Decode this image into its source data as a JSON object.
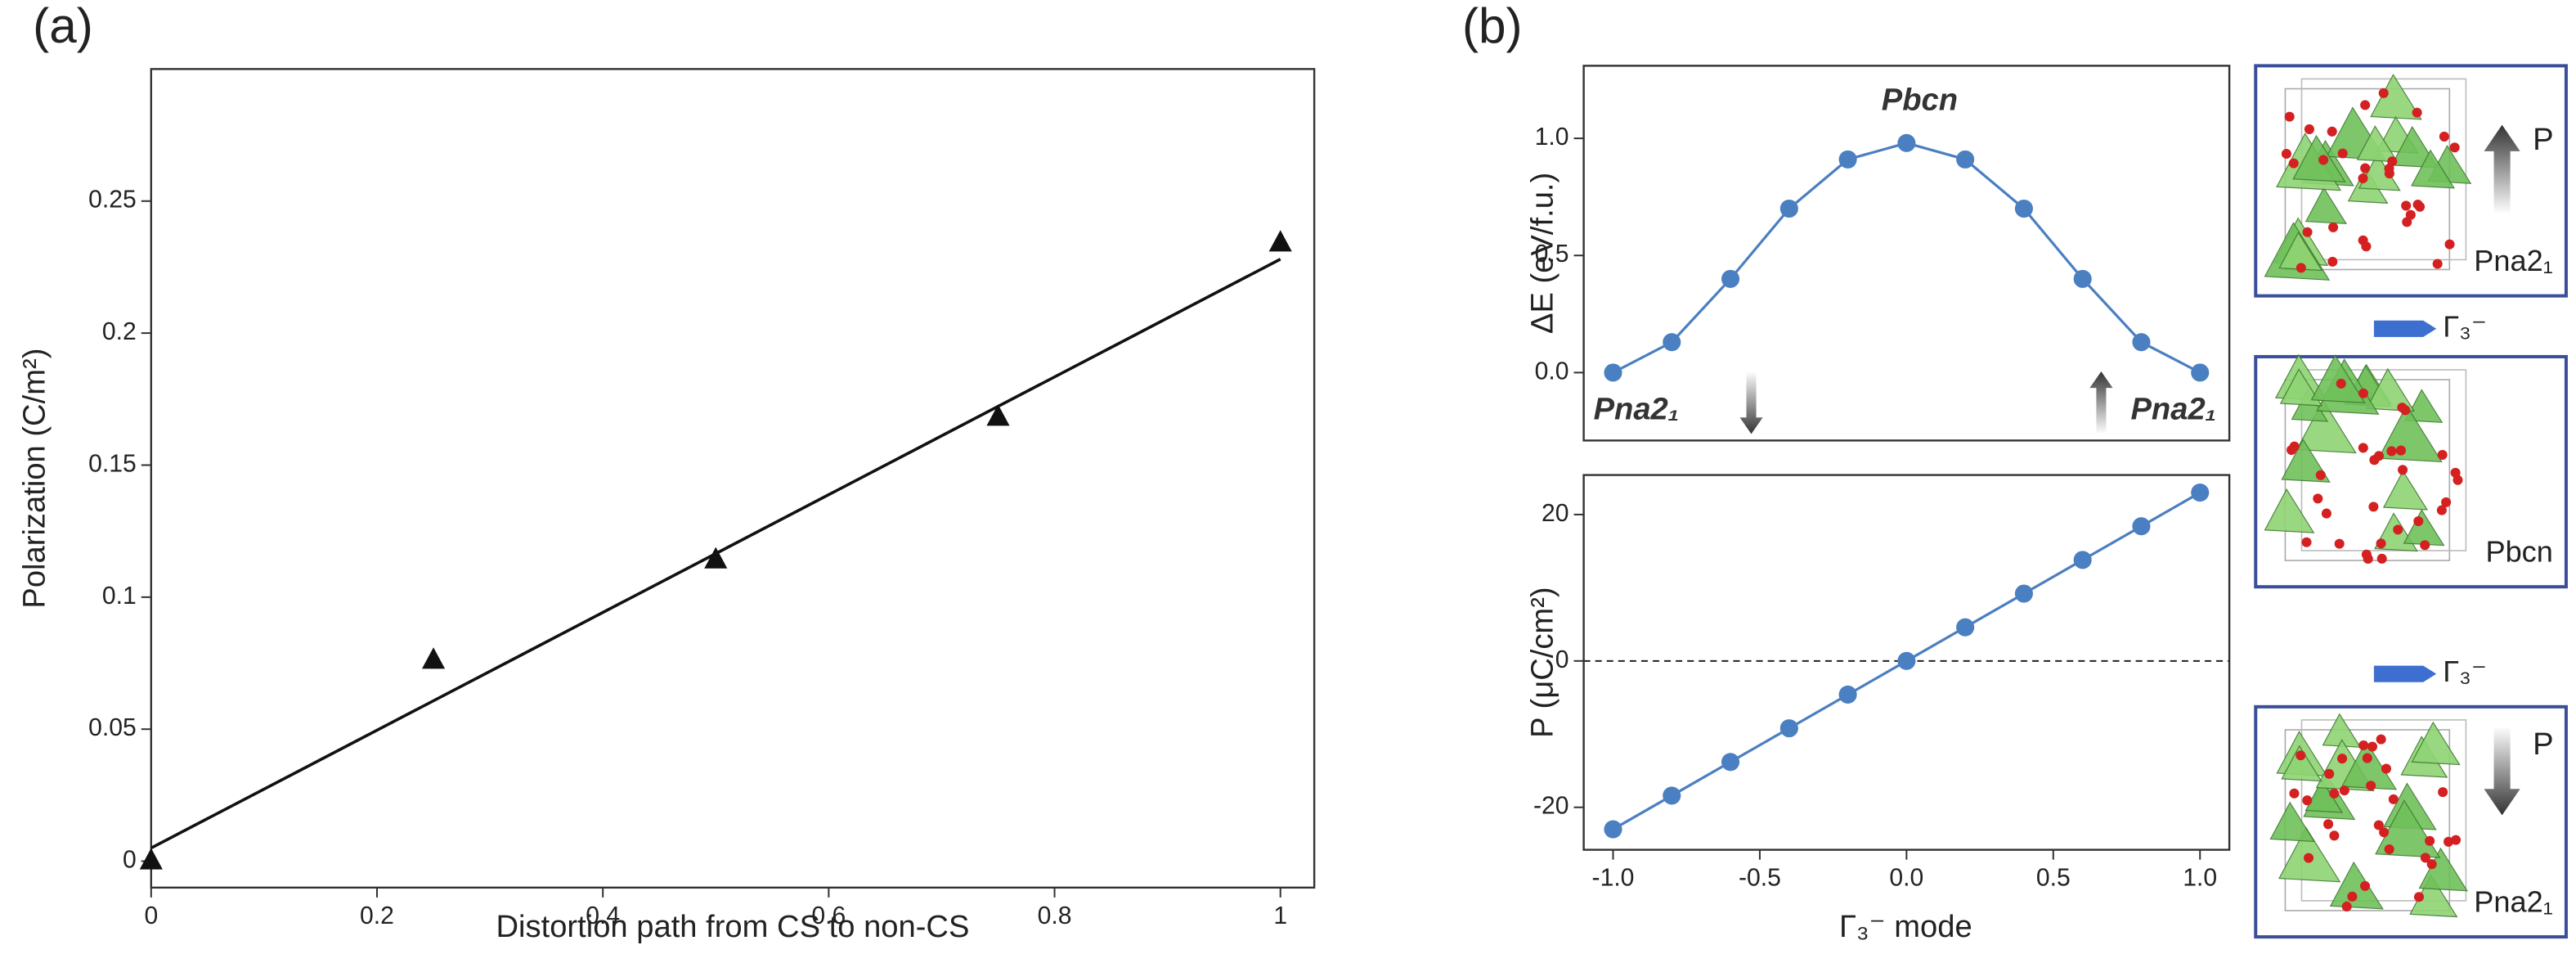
{
  "panel_labels": [
    "(a)",
    "(b)"
  ],
  "chart_data": [
    {
      "type": "scatter",
      "xlabel": "Distortion path from CS to non-CS",
      "ylabel": "Polarization (C/m²)",
      "xlim": [
        0,
        1.03
      ],
      "ylim": [
        -0.01,
        0.3
      ],
      "xticks": [
        0,
        0.2,
        0.4,
        0.6,
        0.8,
        1
      ],
      "yticks": [
        0,
        0.05,
        0.1,
        0.15,
        0.2,
        0.25
      ],
      "series": [
        {
          "color": "#111111",
          "marker": "triangle",
          "x": [
            0,
            0.25,
            0.5,
            0.75,
            1
          ],
          "values": [
            0,
            0.076,
            0.114,
            0.168,
            0.234
          ]
        },
        {
          "color": "#111111",
          "style": "line",
          "x": [
            0,
            1
          ],
          "values": [
            0.005,
            0.228
          ]
        }
      ]
    },
    {
      "type": "line",
      "ylabel": "ΔE (eV/f.u.)",
      "xlim": [
        -1.1,
        1.1
      ],
      "ylim": [
        -0.29,
        1.31
      ],
      "yticks": [
        {
          "value": 0,
          "label": "0.0"
        },
        {
          "value": 0.5,
          "label": "0.5"
        },
        {
          "value": 1,
          "label": "1.0"
        }
      ],
      "x": [
        -1,
        -0.8,
        -0.6,
        -0.4,
        -0.2,
        0,
        0.2,
        0.4,
        0.6,
        0.8,
        1
      ],
      "series": [
        {
          "color": "#4a7fc1",
          "values": [
            0,
            0.13,
            0.4,
            0.7,
            0.91,
            0.98,
            0.91,
            0.7,
            0.4,
            0.13,
            0
          ]
        }
      ],
      "annotations": [
        {
          "text": "Pbcn"
        },
        {
          "text": "Pna2₁",
          "arrow": "down"
        },
        {
          "text": "Pna2₁",
          "arrow": "up"
        }
      ]
    },
    {
      "type": "line",
      "xlabel": "Γ₃⁻ mode",
      "ylabel": "P (μC/cm²)",
      "xlim": [
        -1.1,
        1.1
      ],
      "ylim": [
        -25.8,
        25.4
      ],
      "xticks": [
        {
          "value": -1,
          "label": "-1.0"
        },
        {
          "value": -0.5,
          "label": "-0.5"
        },
        {
          "value": 0,
          "label": "0.0"
        },
        {
          "value": 0.5,
          "label": "0.5"
        },
        {
          "value": 1,
          "label": "1.0"
        }
      ],
      "yticks": [
        -20,
        0,
        20
      ],
      "zero_line": true,
      "x": [
        -1,
        -0.8,
        -0.6,
        -0.4,
        -0.2,
        0,
        0.2,
        0.4,
        0.6,
        0.8,
        1
      ],
      "series": [
        {
          "color": "#4a7fc1",
          "values": [
            -23,
            -18.4,
            -13.8,
            -9.2,
            -4.6,
            0,
            4.6,
            9.2,
            13.8,
            18.4,
            23
          ]
        }
      ]
    }
  ],
  "structures": {
    "panels": [
      {
        "arrow": "P",
        "arrow_direction": "up",
        "label": "Pna2₁"
      },
      {
        "label": "Pbcn"
      },
      {
        "arrow": "P",
        "arrow_direction": "down",
        "label": "Pna2₁"
      }
    ],
    "transitions": [
      "Γ₃⁻",
      "Γ₃⁻"
    ]
  }
}
